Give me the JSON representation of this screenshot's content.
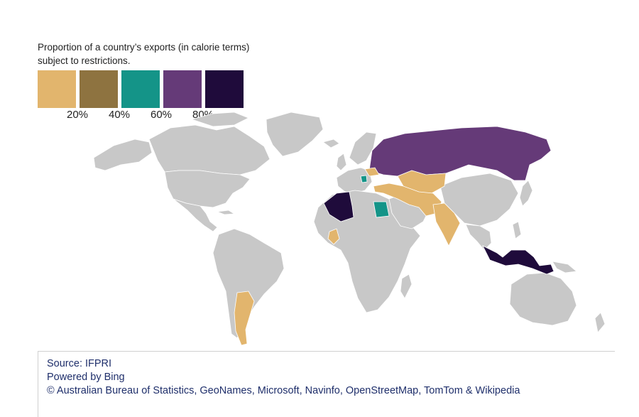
{
  "legend": {
    "title": "Proportion of a country’s exports (in calorie terms) subject to restrictions.",
    "colors": [
      "#e2b56d",
      "#8e7340",
      "#149488",
      "#653a78",
      "#1f0b3b"
    ],
    "ticks": [
      "20%",
      "40%",
      "60%",
      "80%"
    ]
  },
  "map": {
    "land_color": "#c8c8c8",
    "border_color": "#ffffff",
    "highlighted": [
      {
        "region": "Argentina",
        "level": 0
      },
      {
        "region": "Turkey / Iran / Afghanistan / Pakistan / India",
        "level": 0
      },
      {
        "region": "Central Asia",
        "level": 0
      },
      {
        "region": "Ukraine / Moldova",
        "level": 0
      },
      {
        "region": "Burkina Faso",
        "level": 0
      },
      {
        "region": "Serbia",
        "level": 2
      },
      {
        "region": "Egypt",
        "level": 2
      },
      {
        "region": "Russia / Belarus",
        "level": 3
      },
      {
        "region": "Algeria",
        "level": 4
      },
      {
        "region": "Indonesia",
        "level": 4
      }
    ]
  },
  "source": {
    "line1": "Source: IFPRI",
    "line2": "Powered by Bing",
    "line3": "© Australian Bureau of Statistics,  GeoNames, Microsoft, Navinfo, OpenStreetMap, TomTom & Wikipedia"
  }
}
